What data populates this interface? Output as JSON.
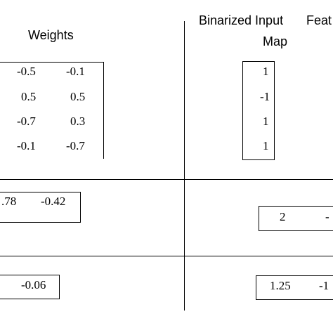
{
  "headings": {
    "weights": "Weights",
    "binarized_line1": "Binarized Input",
    "binarized_line2": "Map",
    "feature_partial": "Feat"
  },
  "weights_matrix": {
    "col1": [
      "-0.5",
      "0.5",
      "-0.7",
      "-0.1"
    ],
    "col2": [
      "-0.1",
      "0.5",
      "0.3",
      "-0.7"
    ]
  },
  "binarized_input": [
    "1",
    "-1",
    "1",
    "1"
  ],
  "row2": {
    "left_values": [
      ".78",
      "-0.42"
    ],
    "right_values": [
      "2",
      "-"
    ]
  },
  "row3": {
    "left_values": [
      "-0.06"
    ],
    "right_values": [
      "1.25",
      "-1"
    ]
  }
}
